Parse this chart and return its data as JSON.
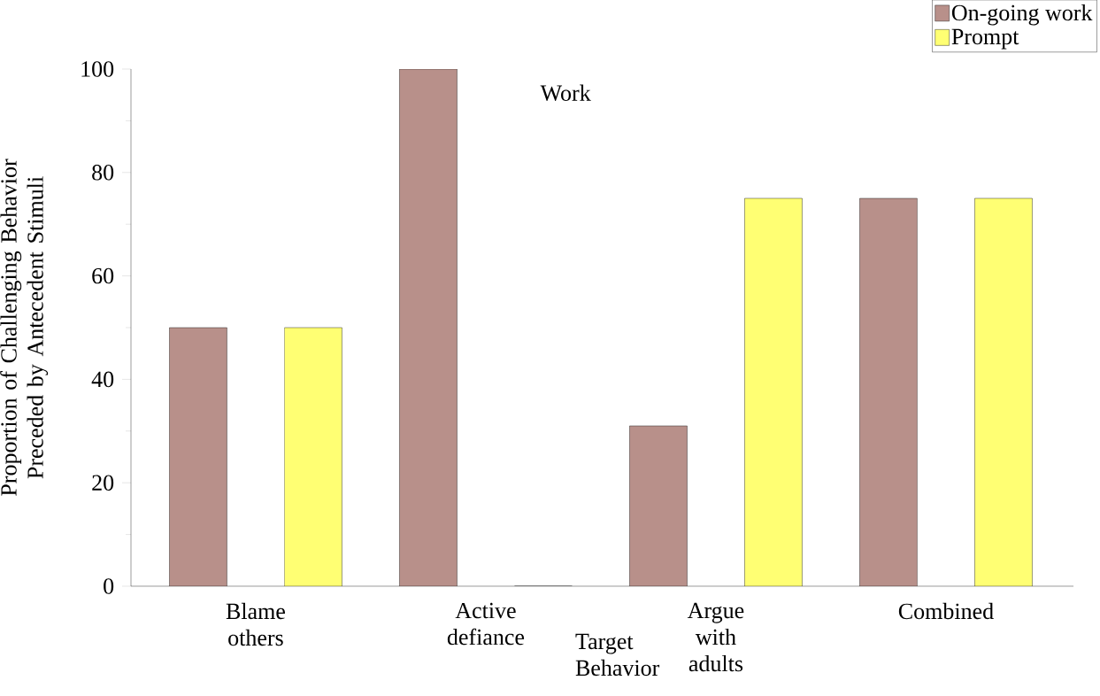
{
  "chart_data": {
    "type": "bar",
    "annotations": [
      "Work"
    ],
    "xlabel": "Target Behavior",
    "ylabel": "Proportion of Challenging Behavior Preceded by Antecedent Stimuli",
    "categories": [
      "Blame others",
      "Active defiance",
      "Argue with adults",
      "Combined"
    ],
    "series": [
      {
        "name": "On-going work",
        "color": "#b8908a",
        "values": [
          50,
          100,
          31,
          75
        ]
      },
      {
        "name": "Prompt",
        "color": "#ffff73",
        "values": [
          50,
          0,
          75,
          75
        ]
      }
    ],
    "ylim": [
      0,
      100
    ],
    "yticks": [
      0,
      20,
      40,
      60,
      80,
      100
    ],
    "grid": false,
    "legend": "top right"
  }
}
